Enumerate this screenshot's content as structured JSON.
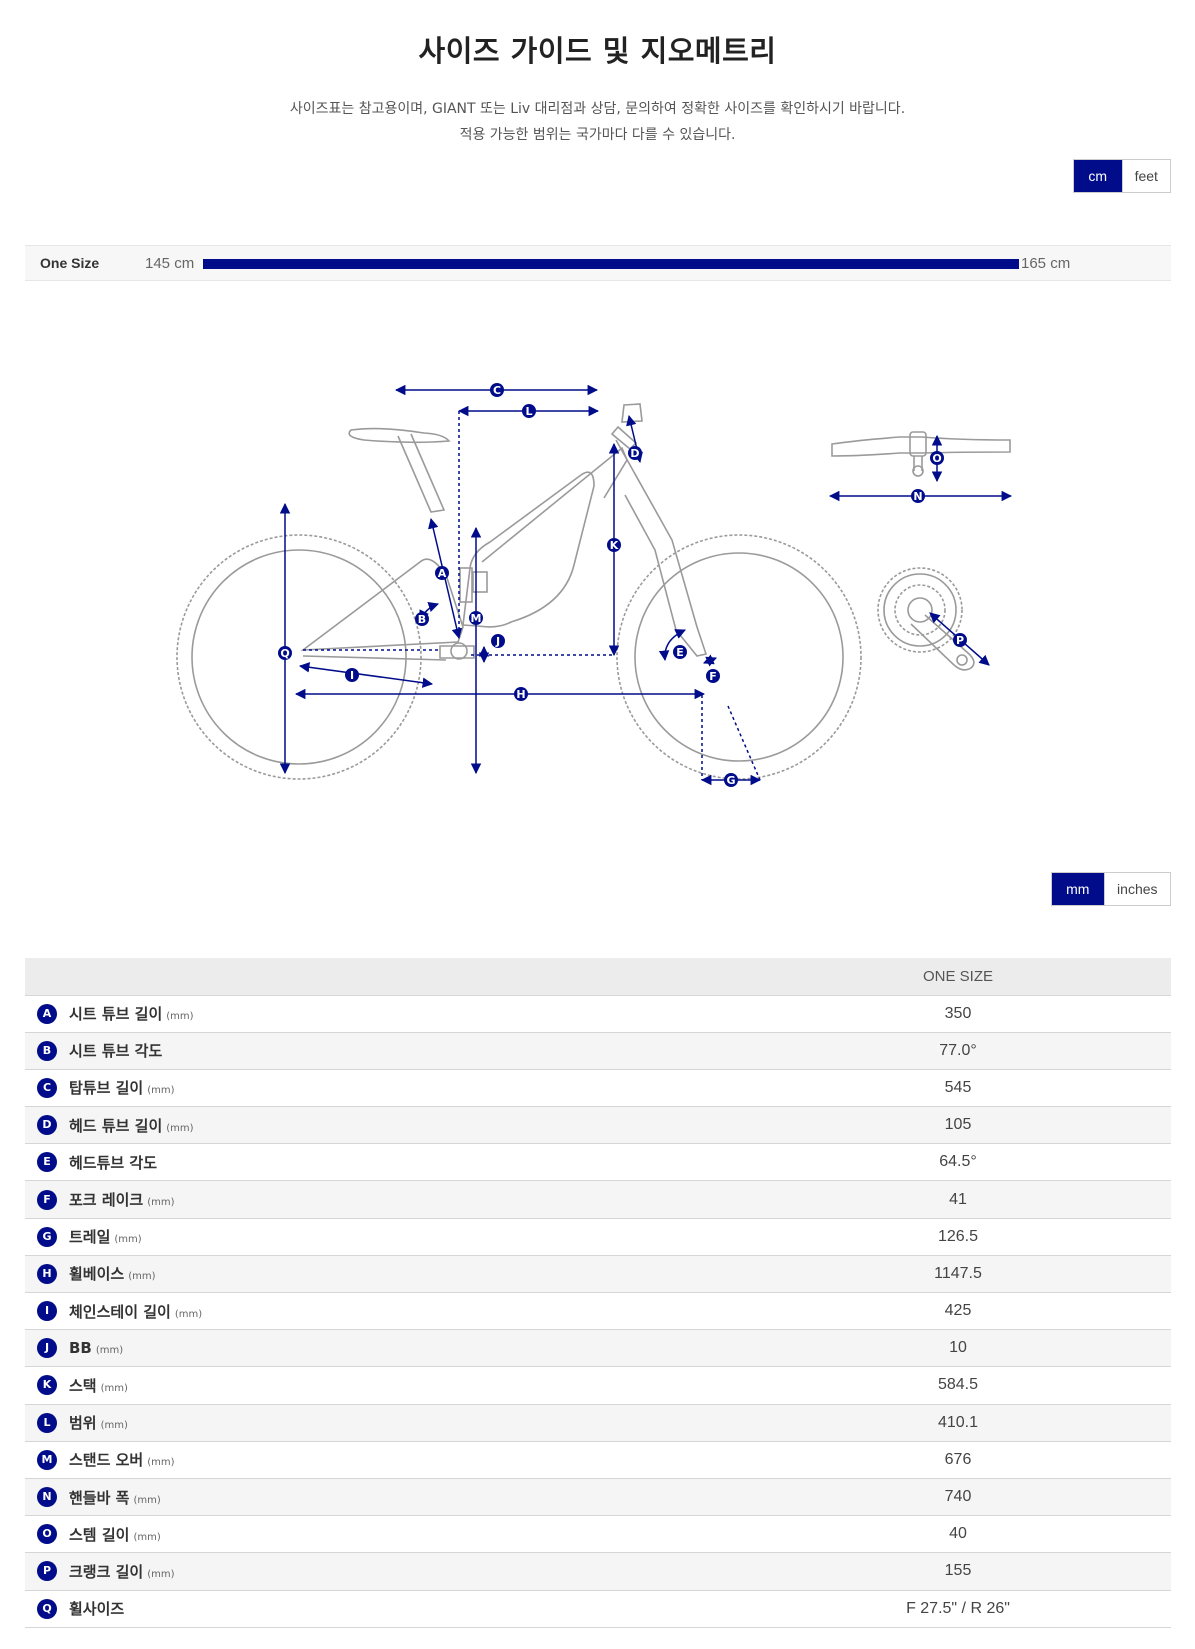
{
  "header": {
    "title": "사이즈 가이드 및 지오메트리",
    "subtitle_line1": "사이즈표는 참고용이며, GIANT 또는 Liv 대리점과 상담, 문의하여 정확한 사이즈를 확인하시기 바랍니다.",
    "subtitle_line2": "적용 가능한 범위는 국가마다 다를 수 있습니다."
  },
  "unit_toggle": {
    "cm": "cm",
    "feet": "feet",
    "active": "cm"
  },
  "size_range": {
    "name": "One Size",
    "min_label": "145 cm",
    "max_label": "165 cm",
    "fill_fraction": 1.0
  },
  "geometry_labels": [
    "A",
    "B",
    "C",
    "D",
    "E",
    "F",
    "G",
    "H",
    "I",
    "J",
    "K",
    "L",
    "M",
    "N",
    "O",
    "P",
    "Q"
  ],
  "measure_toggle": {
    "mm": "mm",
    "inches": "inches",
    "active": "mm"
  },
  "table": {
    "column_header": "ONE SIZE",
    "rows": [
      {
        "key": "A",
        "label": "시트 튜브 길이",
        "unit": "(mm)",
        "value": "350"
      },
      {
        "key": "B",
        "label": "시트 튜브 각도",
        "unit": "",
        "value": "77.0°"
      },
      {
        "key": "C",
        "label": "탑튜브 길이",
        "unit": "(mm)",
        "value": "545"
      },
      {
        "key": "D",
        "label": "헤드 튜브 길이",
        "unit": "(mm)",
        "value": "105"
      },
      {
        "key": "E",
        "label": "헤드튜브 각도",
        "unit": "",
        "value": "64.5°"
      },
      {
        "key": "F",
        "label": "포크 레이크",
        "unit": "(mm)",
        "value": "41"
      },
      {
        "key": "G",
        "label": "트레일",
        "unit": "(mm)",
        "value": "126.5"
      },
      {
        "key": "H",
        "label": "휠베이스",
        "unit": "(mm)",
        "value": "1147.5"
      },
      {
        "key": "I",
        "label": "체인스테이 길이",
        "unit": "(mm)",
        "value": "425"
      },
      {
        "key": "J",
        "label": "BB",
        "unit": "(mm)",
        "value": "10"
      },
      {
        "key": "K",
        "label": "스택",
        "unit": "(mm)",
        "value": "584.5"
      },
      {
        "key": "L",
        "label": "범위",
        "unit": "(mm)",
        "value": "410.1"
      },
      {
        "key": "M",
        "label": "스탠드 오버",
        "unit": "(mm)",
        "value": "676"
      },
      {
        "key": "N",
        "label": "핸들바 폭",
        "unit": "(mm)",
        "value": "740"
      },
      {
        "key": "O",
        "label": "스템 길이",
        "unit": "(mm)",
        "value": "40"
      },
      {
        "key": "P",
        "label": "크랭크 길이",
        "unit": "(mm)",
        "value": "155"
      },
      {
        "key": "Q",
        "label": "휠사이즈",
        "unit": "",
        "value": "F 27.5\" / R 26\""
      }
    ]
  },
  "colors": {
    "accent": "#000c8a",
    "diagram_line": "#9a9a9a"
  },
  "icons": [
    "bike-geometry-diagram",
    "handlebar-diagram",
    "crankset-diagram"
  ]
}
